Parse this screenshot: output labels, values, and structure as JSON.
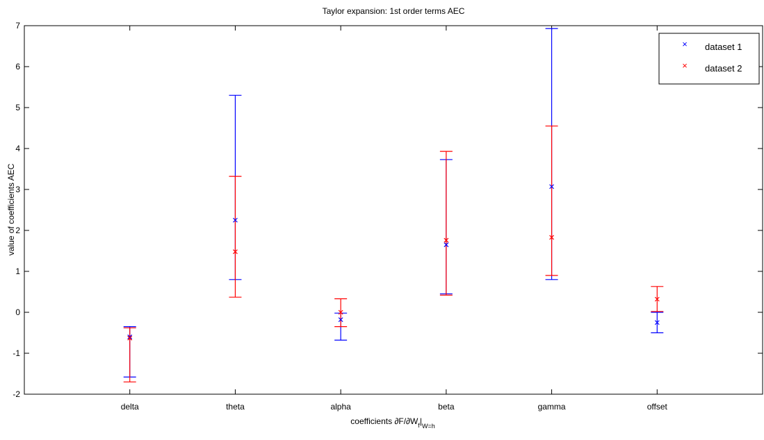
{
  "chart_data": {
    "type": "scatter",
    "title": "Taylor expansion: 1st order terms AEC",
    "xlabel_main": "coefficients ∂F/∂W",
    "xlabel_sub1": "f",
    "xlabel_bar": "|",
    "xlabel_sub2": "W=h",
    "ylabel": "value of coefficients AEC",
    "categories": [
      "delta",
      "theta",
      "alpha",
      "beta",
      "gamma",
      "offset"
    ],
    "xlim": [
      0,
      7
    ],
    "ylim": [
      -2,
      7
    ],
    "yticks": [
      -2,
      -1,
      0,
      1,
      2,
      3,
      4,
      5,
      6,
      7
    ],
    "marker": "×",
    "legend_position": "top-right",
    "grid": false,
    "series": [
      {
        "name": "dataset 1",
        "color": "#0000ff",
        "values": [
          -0.6,
          2.25,
          -0.18,
          1.65,
          3.07,
          -0.25
        ],
        "lower": [
          -1.58,
          0.8,
          -0.68,
          0.45,
          0.8,
          -0.5
        ],
        "upper": [
          -0.35,
          5.3,
          -0.02,
          3.73,
          6.93,
          0.0
        ]
      },
      {
        "name": "dataset 2",
        "color": "#ff0000",
        "values": [
          -0.63,
          1.48,
          0.0,
          1.76,
          1.83,
          0.32
        ],
        "lower": [
          -1.7,
          0.37,
          -0.35,
          0.42,
          0.9,
          0.02
        ],
        "upper": [
          -0.38,
          3.32,
          0.33,
          3.93,
          4.55,
          0.63
        ]
      }
    ]
  }
}
